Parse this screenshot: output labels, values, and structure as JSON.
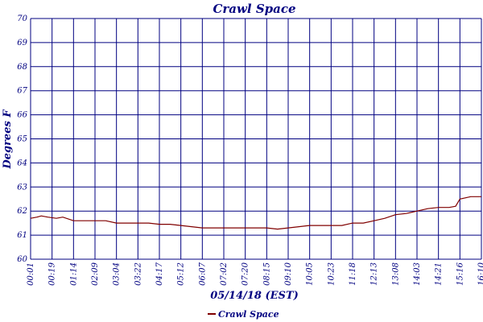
{
  "chart_data": {
    "type": "line",
    "title": "Crawl Space",
    "xlabel": "05/14/18 (EST)",
    "ylabel": "Degrees F",
    "ylim": [
      60,
      70
    ],
    "yticks": [
      "60",
      "61",
      "62",
      "63",
      "64",
      "65",
      "66",
      "67",
      "68",
      "69",
      "70"
    ],
    "xticks": [
      "00:01",
      "00:19",
      "01:14",
      "02:09",
      "03:04",
      "03:22",
      "04:17",
      "05:12",
      "06:07",
      "07:02",
      "07:20",
      "08:15",
      "09:10",
      "10:05",
      "10:23",
      "11:18",
      "12:13",
      "13:08",
      "14:03",
      "14:21",
      "15:16",
      "16:10"
    ],
    "grid": true,
    "legend_position": "bottom",
    "colors": {
      "series": "#800000",
      "grid": "#000080",
      "text": "#000080"
    },
    "series": [
      {
        "name": "Crawl Space",
        "x": [
          0,
          0.3,
          0.5,
          0.8,
          1.2,
          1.5,
          2,
          2.5,
          3,
          3.5,
          4,
          4.5,
          5,
          5.5,
          6,
          6.5,
          7,
          7.5,
          8,
          8.5,
          9,
          9.5,
          10,
          10.5,
          11,
          11.5,
          12,
          12.5,
          13,
          13.5,
          14,
          14.5,
          15,
          15.5,
          16,
          16.5,
          17,
          17.5,
          18,
          18.5,
          19,
          19.5,
          19.8,
          20,
          20.5,
          21
        ],
        "y": [
          61.7,
          61.75,
          61.8,
          61.75,
          61.7,
          61.75,
          61.6,
          61.6,
          61.6,
          61.6,
          61.5,
          61.5,
          61.5,
          61.5,
          61.45,
          61.45,
          61.4,
          61.35,
          61.3,
          61.3,
          61.3,
          61.3,
          61.3,
          61.3,
          61.3,
          61.25,
          61.3,
          61.35,
          61.4,
          61.4,
          61.4,
          61.4,
          61.5,
          61.5,
          61.6,
          61.7,
          61.85,
          61.9,
          62.0,
          62.1,
          62.15,
          62.15,
          62.2,
          62.5,
          62.6,
          62.6
        ]
      }
    ]
  }
}
